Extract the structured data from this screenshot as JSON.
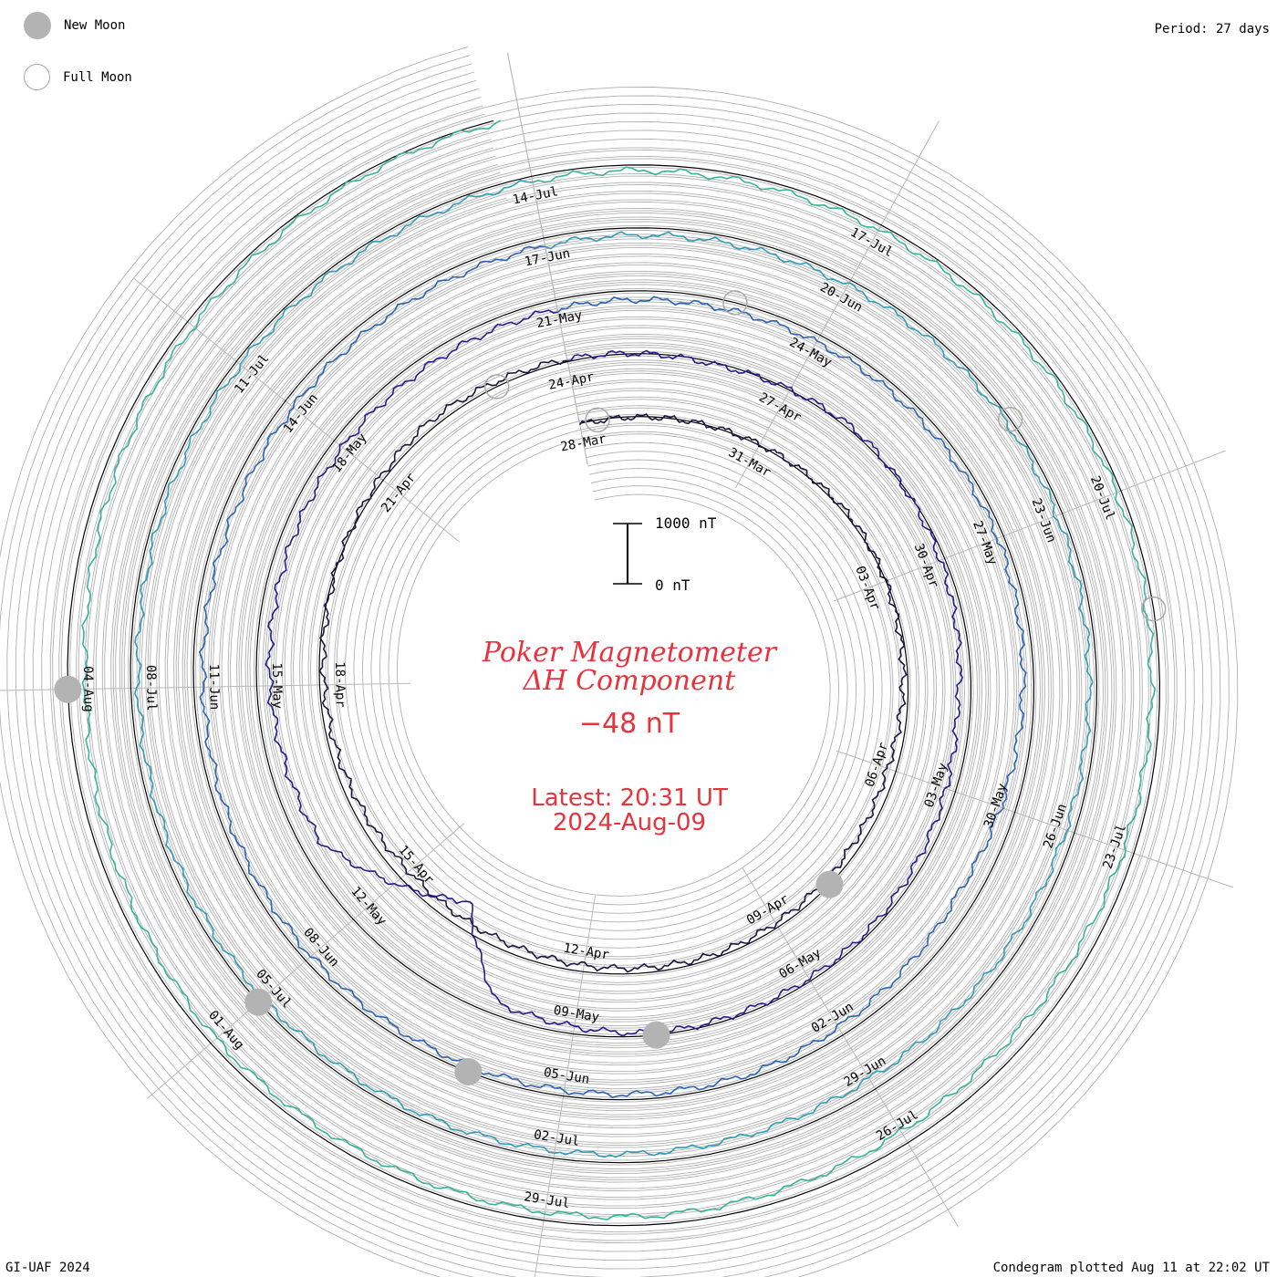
{
  "legend": {
    "new_moon_label": "New Moon",
    "full_moon_label": "Full Moon"
  },
  "header": {
    "period_label": "Period: 27 days"
  },
  "footer": {
    "credit": "GI-UAF 2024",
    "plotted": "Condegram plotted Aug 11 at 22:02 UT"
  },
  "title": {
    "line1": "Poker Magnetometer",
    "line2": "ΔH Component"
  },
  "current_value": "−48 nT",
  "latest": {
    "time_label": "Latest: 20:31 UT",
    "date_label": "2024-Aug-09"
  },
  "scale_bar": {
    "top_label": "1000 nT",
    "bottom_label": "0 nT"
  },
  "colors": {
    "accent": "#e8323c",
    "grid": "#b0b0b0",
    "moon_fill": "#b3b3b3"
  },
  "chart_data": {
    "type": "line",
    "layout": "spiral condegram",
    "period_days": 27,
    "units": "nT",
    "scale_bar_nT": [
      0,
      1000
    ],
    "start_date": "2024-03-28",
    "end_date": "2024-08-09",
    "day_labels": [
      "28-Mar",
      "31-Mar",
      "03-Apr",
      "06-Apr",
      "09-Apr",
      "12-Apr",
      "15-Apr",
      "18-Apr",
      "21-Apr",
      "24-Apr",
      "27-Apr",
      "30-Apr",
      "03-May",
      "06-May",
      "09-May",
      "12-May",
      "15-May",
      "18-May",
      "21-May",
      "24-May",
      "27-May",
      "30-May",
      "02-Jun",
      "05-Jun",
      "08-Jun",
      "11-Jun",
      "14-Jun",
      "17-Jun",
      "20-Jun",
      "23-Jun",
      "26-Jun",
      "29-Jun",
      "02-Jul",
      "05-Jul",
      "08-Jul",
      "11-Jul",
      "14-Jul",
      "17-Jul",
      "20-Jul",
      "23-Jul",
      "26-Jul",
      "29-Jul",
      "01-Aug",
      "04-Aug"
    ],
    "ring_colors": [
      "#1a1440",
      "#241a8c",
      "#2a64b4",
      "#2f9cb8",
      "#36b496",
      "#6ec23a",
      "#aab81e",
      "#c47a12",
      "#c23a14"
    ],
    "new_moons": [
      "2024-04-08",
      "2024-05-08",
      "2024-06-06",
      "2024-07-05",
      "2024-08-04"
    ],
    "full_moons": [
      "2024-03-25",
      "2024-04-23",
      "2024-05-23",
      "2024-06-22",
      "2024-07-21"
    ],
    "series": [
      {
        "date": [
          "2024-03-28",
          "2024-04-02",
          "2024-04-06",
          "2024-04-10",
          "2024-04-15",
          "2024-04-19",
          "2024-04-22",
          "2024-04-26",
          "2024-04-28",
          "2024-05-02",
          "2024-05-05",
          "2024-05-08",
          "2024-05-10",
          "2024-05-11",
          "2024-05-13",
          "2024-05-15",
          "2024-05-18",
          "2024-05-22",
          "2024-05-27",
          "2024-05-31",
          "2024-06-03",
          "2024-06-08",
          "2024-06-13",
          "2024-06-18",
          "2024-06-22",
          "2024-06-26",
          "2024-06-29",
          "2024-07-03",
          "2024-07-08",
          "2024-07-12",
          "2024-07-16",
          "2024-07-20",
          "2024-07-25",
          "2024-07-28",
          "2024-08-01",
          "2024-08-04",
          "2024-08-07",
          "2024-08-09"
        ],
        "deltaH_nT": [
          -20,
          40,
          -150,
          -60,
          -180,
          -40,
          120,
          -40,
          60,
          -220,
          -60,
          -40,
          -200,
          -1500,
          -320,
          -220,
          -180,
          -150,
          -100,
          -300,
          -80,
          -120,
          -180,
          -120,
          -80,
          -150,
          -200,
          -100,
          -120,
          -80,
          -100,
          -80,
          -250,
          -150,
          -120,
          -300,
          -120,
          -48
        ]
      }
    ]
  }
}
